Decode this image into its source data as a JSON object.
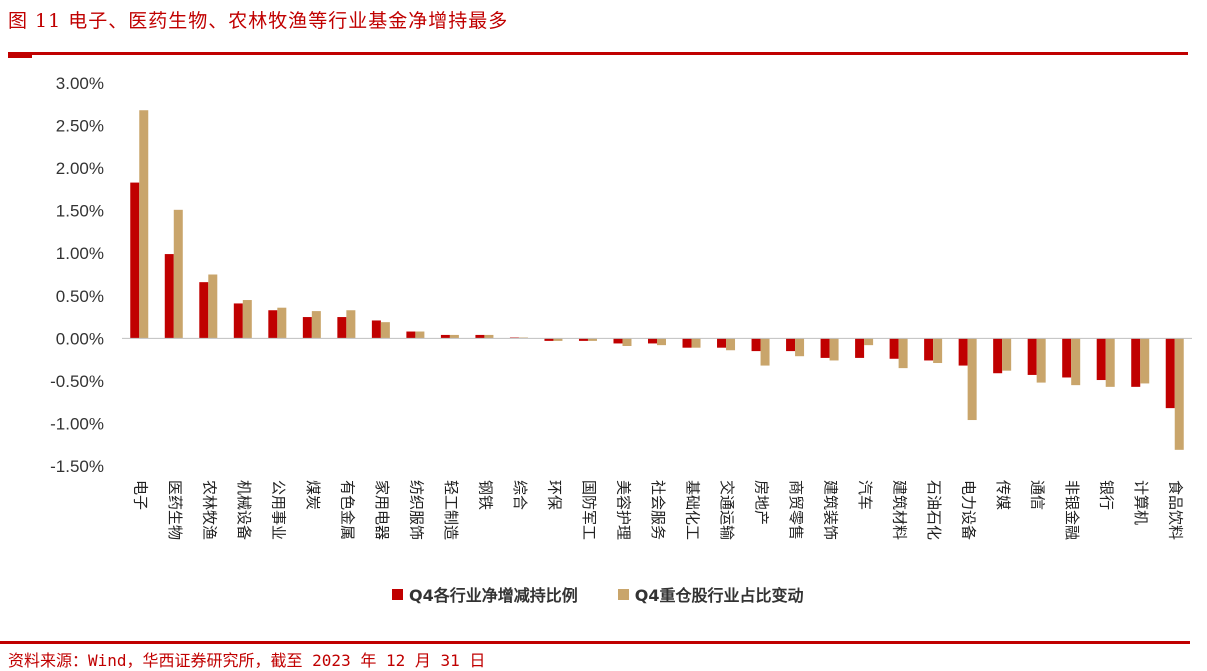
{
  "header": {
    "title": "图 11  电子、医药生物、农林牧渔等行业基金净增持最多"
  },
  "footer": {
    "source": "资料来源：Wind，华西证券研究所，截至 2023 年 12 月 31 日"
  },
  "colors": {
    "accent": "#c00000",
    "series1": "#c00000",
    "series2": "#c9a56b"
  },
  "chart_data": {
    "type": "bar",
    "title": "",
    "xlabel": "",
    "ylabel": "",
    "ylim": [
      -0.015,
      0.03
    ],
    "yticks": [
      "3.00%",
      "2.50%",
      "2.00%",
      "1.50%",
      "1.00%",
      "0.50%",
      "0.00%",
      "-0.50%",
      "-1.00%",
      "-1.50%"
    ],
    "ytick_values": [
      0.03,
      0.025,
      0.02,
      0.015,
      0.01,
      0.005,
      0,
      -0.005,
      -0.01,
      -0.015
    ],
    "legend_position": "bottom",
    "grid": false,
    "categories": [
      "电子",
      "医药生物",
      "农林牧渔",
      "机械设备",
      "公用事业",
      "煤炭",
      "有色金属",
      "家用电器",
      "纺织服饰",
      "轻工制造",
      "钢铁",
      "综合",
      "环保",
      "国防军工",
      "美容护理",
      "社会服务",
      "基础化工",
      "交通运输",
      "房地产",
      "商贸零售",
      "建筑装饰",
      "汽车",
      "建筑材料",
      "石油石化",
      "电力设备",
      "传媒",
      "通信",
      "非银金融",
      "银行",
      "计算机",
      "食品饮料"
    ],
    "series": [
      {
        "name": "Q4各行业净增减持比例",
        "values": [
          0.0183,
          0.0099,
          0.0066,
          0.0041,
          0.0033,
          0.0025,
          0.0025,
          0.0021,
          0.0008,
          0.0004,
          0.0004,
          0.0001,
          -0.0003,
          -0.0003,
          -0.0006,
          -0.0006,
          -0.0011,
          -0.0011,
          -0.0015,
          -0.0015,
          -0.0023,
          -0.0023,
          -0.0024,
          -0.0026,
          -0.0032,
          -0.0041,
          -0.0043,
          -0.0046,
          -0.0049,
          -0.0057,
          -0.0082
        ]
      },
      {
        "name": "Q4重仓股行业占比变动",
        "values": [
          0.0268,
          0.0151,
          0.0075,
          0.0045,
          0.0036,
          0.0032,
          0.0033,
          0.0019,
          0.0008,
          0.0004,
          0.0004,
          0.0001,
          -0.0003,
          -0.0003,
          -0.0009,
          -0.0008,
          -0.0011,
          -0.0014,
          -0.0032,
          -0.0021,
          -0.0026,
          -0.0008,
          -0.0035,
          -0.0029,
          -0.0096,
          -0.0038,
          -0.0052,
          -0.0055,
          -0.0057,
          -0.0053,
          -0.0131
        ]
      }
    ]
  }
}
